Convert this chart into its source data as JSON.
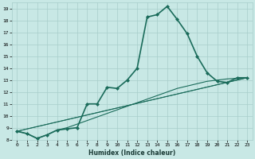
{
  "title": "",
  "xlabel": "Humidex (Indice chaleur)",
  "ylabel": "",
  "bg_color": "#c8e8e5",
  "grid_color": "#a8ceca",
  "line_color": "#1a6b5a",
  "xlim": [
    -0.5,
    23.5
  ],
  "ylim": [
    8,
    19.5
  ],
  "xticks": [
    0,
    1,
    2,
    3,
    4,
    5,
    6,
    7,
    8,
    9,
    10,
    11,
    12,
    13,
    14,
    15,
    16,
    17,
    18,
    19,
    20,
    21,
    22,
    23
  ],
  "yticks": [
    8,
    9,
    10,
    11,
    12,
    13,
    14,
    15,
    16,
    17,
    18,
    19
  ],
  "series_main": {
    "x": [
      0,
      1,
      2,
      3,
      4,
      5,
      6,
      7,
      8,
      9,
      10,
      11,
      12,
      13,
      14,
      15,
      16,
      17,
      18,
      19,
      20,
      21,
      22,
      23
    ],
    "y": [
      8.7,
      8.5,
      8.1,
      8.4,
      8.8,
      8.9,
      9.0,
      11.0,
      11.0,
      12.4,
      12.3,
      13.0,
      14.0,
      18.3,
      18.5,
      19.2,
      18.1,
      16.9,
      15.0,
      13.6,
      12.9,
      12.8,
      13.2,
      13.2
    ],
    "marker": "D",
    "markersize": 2.0,
    "linewidth": 1.2
  },
  "series_smooth": {
    "x": [
      0,
      1,
      2,
      3,
      4,
      5,
      6,
      7,
      8,
      9,
      10,
      11,
      12,
      13,
      14,
      15,
      16,
      17,
      18,
      19,
      20,
      21,
      22,
      23
    ],
    "y": [
      8.7,
      8.5,
      8.1,
      8.4,
      8.8,
      9.0,
      9.3,
      9.6,
      9.9,
      10.2,
      10.5,
      10.8,
      11.1,
      11.4,
      11.7,
      12.0,
      12.3,
      12.5,
      12.7,
      12.9,
      13.0,
      13.1,
      13.15,
      13.2
    ],
    "linewidth": 0.8
  },
  "series_line1": {
    "x": [
      0,
      23
    ],
    "y": [
      8.7,
      13.2
    ],
    "linewidth": 0.8
  },
  "series_line2": {
    "x": [
      0,
      23
    ],
    "y": [
      8.7,
      13.2
    ],
    "linewidth": 0.6
  },
  "xlabel_fontsize": 5.5,
  "tick_fontsize": 4.5
}
